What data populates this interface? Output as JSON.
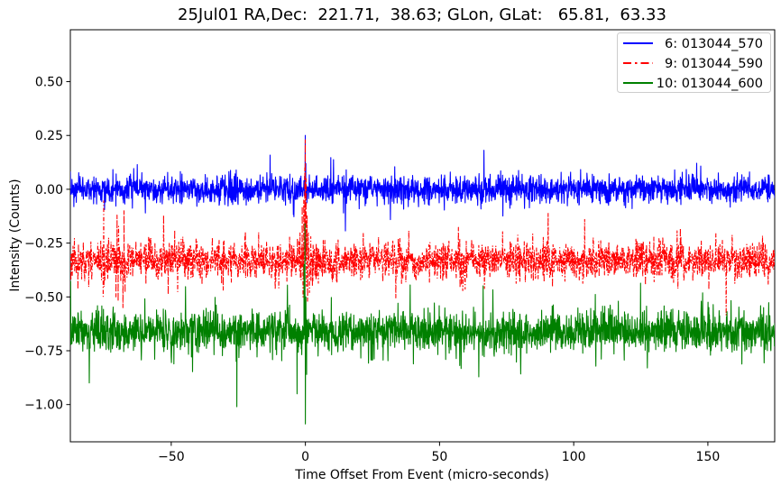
{
  "chart_data": {
    "type": "line",
    "title": "25Jul01 RA,Dec:  221.71,  38.63; GLon, GLat:   65.81,  63.33",
    "xlabel": "Time Offset From Event (micro-seconds)",
    "ylabel": "Intensity (Counts)",
    "xlim": [
      -87.6,
      174.9
    ],
    "ylim": [
      -1.173,
      0.741
    ],
    "xtick_values": [
      -50,
      0,
      50,
      100,
      150
    ],
    "xtick_labels": [
      "−50",
      "0",
      "50",
      "100",
      "150"
    ],
    "ytick_values": [
      0.5,
      0.25,
      0,
      -0.25,
      -0.5,
      -0.75,
      -1
    ],
    "ytick_labels": [
      "0.50",
      "0.25",
      "0.00",
      "−0.25",
      "−0.50",
      "−0.75",
      "−1.00"
    ],
    "grid": false,
    "legend_position": "upper right",
    "event_time": 0,
    "description": "Three noisy intensity traces vs time offset; sharp impulse at t=0: blue peaks +0.25, red rings between +0.23 and -0.55, green dips to -1.09. Red outlier cluster near t=-70 (to -0.55); green dip to -1.01 near t=-25.5.",
    "series": [
      {
        "label": "6: 013044_570",
        "color": "#0000ff",
        "linestyle": "solid",
        "baseline": 0.0,
        "noise_sigma": 0.03,
        "notable_points": [
          [
            -0.3,
            0.06
          ],
          [
            -0.05,
            0.25
          ],
          [
            0.15,
            0.12
          ],
          [
            0.35,
            0.02
          ]
        ]
      },
      {
        "label": "9: 013044_590",
        "color": "#ff0000",
        "linestyle": "dashdot",
        "baseline": -0.33,
        "noise_sigma": 0.042,
        "notable_points": [
          [
            -70.6,
            -0.5
          ],
          [
            -70.2,
            -0.12
          ],
          [
            -69.8,
            -0.52
          ],
          [
            -69.3,
            -0.3
          ],
          [
            -68.0,
            -0.55
          ],
          [
            -67.6,
            -0.1
          ],
          [
            -67.2,
            -0.48
          ],
          [
            -2.0,
            -0.2
          ],
          [
            -1.6,
            -0.42
          ],
          [
            -1.2,
            -0.08
          ],
          [
            -0.9,
            -0.5
          ],
          [
            -0.6,
            -0.05
          ],
          [
            -0.4,
            -0.3
          ],
          [
            -0.2,
            0.1
          ],
          [
            -0.05,
            0.23
          ],
          [
            0.1,
            -0.2
          ],
          [
            0.25,
            0.05
          ],
          [
            0.4,
            -0.45
          ],
          [
            0.6,
            -0.12
          ],
          [
            0.8,
            -0.52
          ],
          [
            1.1,
            -0.2
          ],
          [
            1.5,
            -0.48
          ],
          [
            2.0,
            -0.22
          ],
          [
            2.6,
            -0.45
          ],
          [
            3.3,
            -0.28
          ],
          [
            4.0,
            -0.42
          ]
        ]
      },
      {
        "label": "10: 013044_600",
        "color": "#008000",
        "linestyle": "solid",
        "baseline": -0.66,
        "noise_sigma": 0.046,
        "notable_points": [
          [
            -25.8,
            -0.8
          ],
          [
            -25.55,
            -1.01
          ],
          [
            -25.3,
            -0.72
          ],
          [
            -3.1,
            -0.95
          ],
          [
            -0.5,
            -0.35
          ],
          [
            -0.3,
            -0.62
          ],
          [
            -0.15,
            -0.16
          ],
          [
            0.0,
            -1.09
          ],
          [
            0.2,
            -0.5
          ],
          [
            0.45,
            -0.86
          ],
          [
            0.7,
            -0.62
          ]
        ]
      }
    ]
  }
}
